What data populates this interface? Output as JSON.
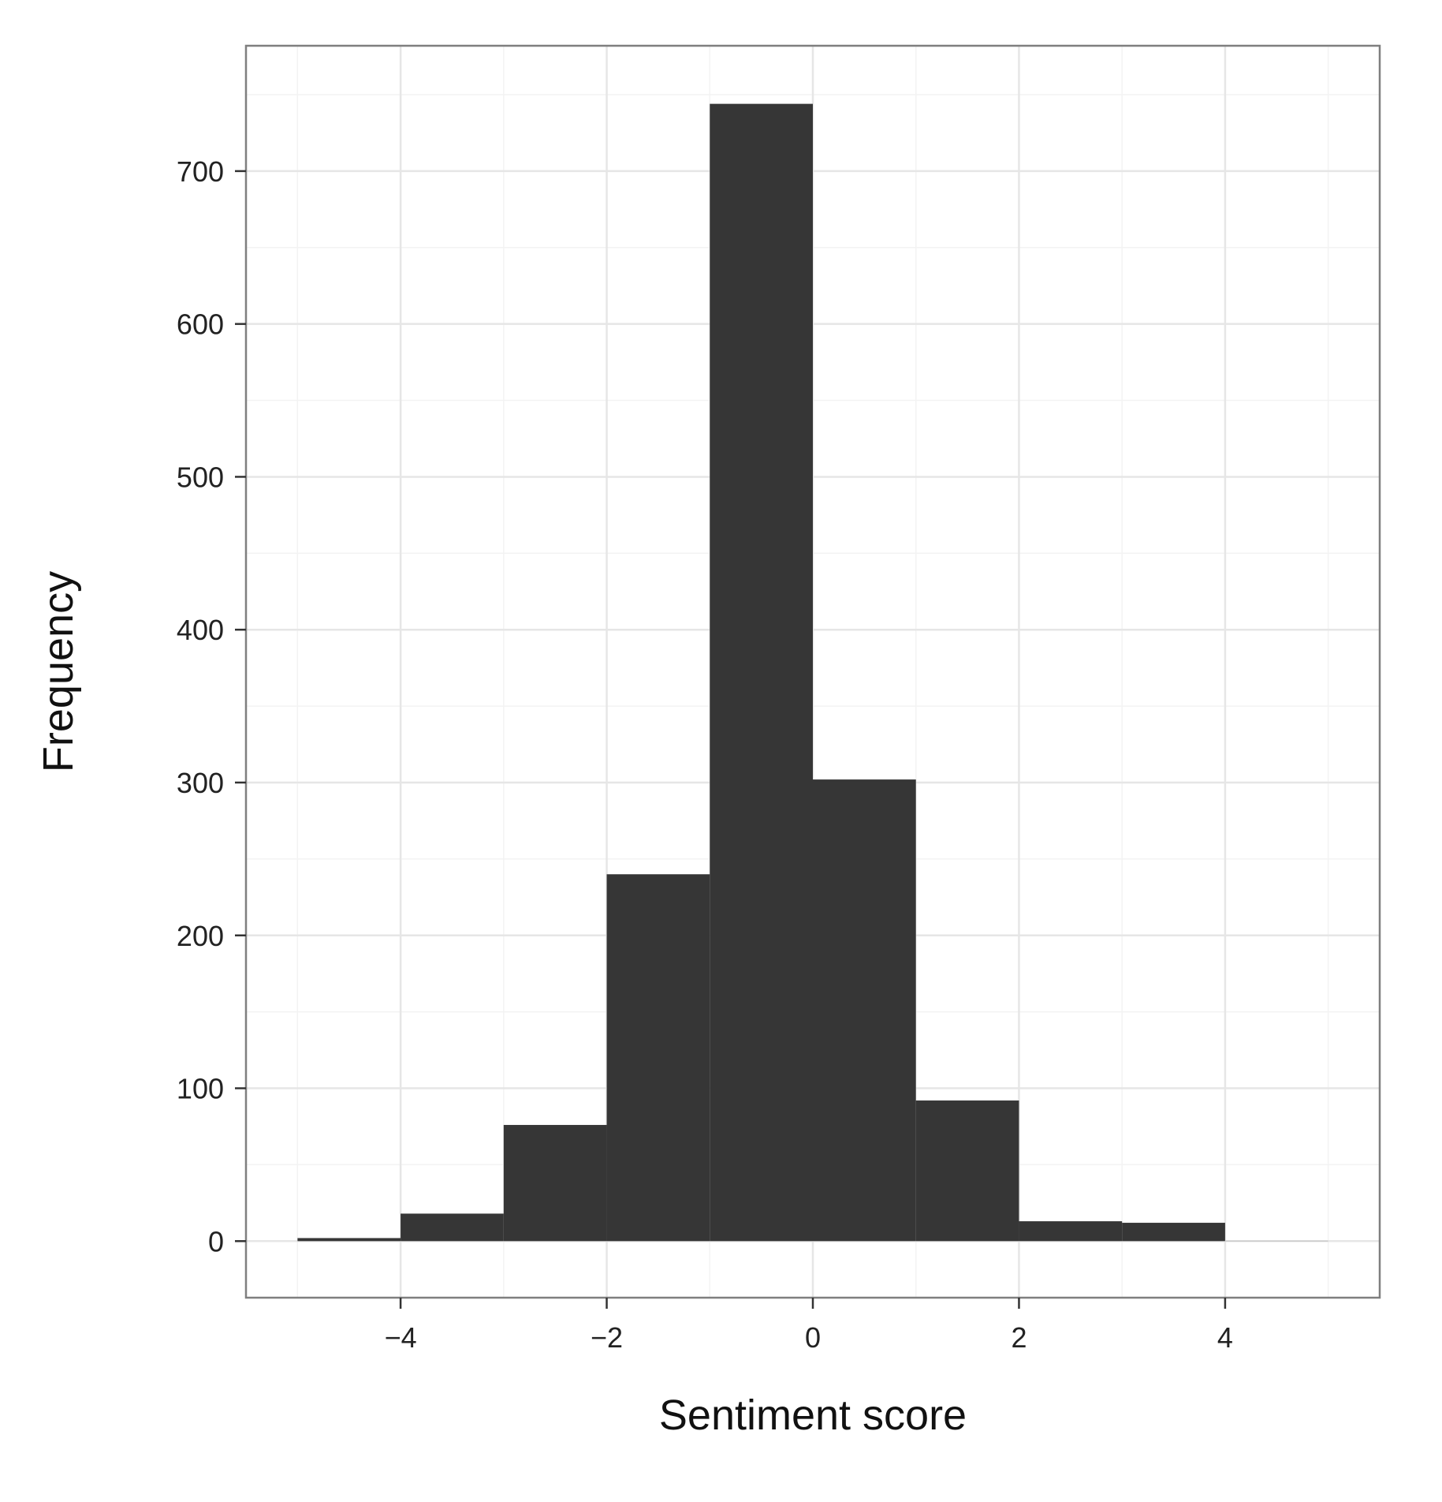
{
  "chart_data": {
    "type": "bar",
    "xlabel": "Sentiment score",
    "ylabel": "Frequency",
    "bins": [
      {
        "x_start": -5,
        "x_end": -4,
        "count": 2
      },
      {
        "x_start": -4,
        "x_end": -3,
        "count": 18
      },
      {
        "x_start": -3,
        "x_end": -2,
        "count": 76
      },
      {
        "x_start": -2,
        "x_end": -1,
        "count": 240
      },
      {
        "x_start": -1,
        "x_end": 0,
        "count": 744
      },
      {
        "x_start": 0,
        "x_end": 1,
        "count": 302
      },
      {
        "x_start": 1,
        "x_end": 2,
        "count": 92
      },
      {
        "x_start": 2,
        "x_end": 3,
        "count": 13
      },
      {
        "x_start": 3,
        "x_end": 4,
        "count": 12
      },
      {
        "x_start": 4,
        "x_end": 5,
        "count": 0
      }
    ],
    "xlim": [
      -5.5,
      5.5
    ],
    "ylim": [
      -37,
      782
    ],
    "x_ticks": [
      -4,
      -2,
      0,
      2,
      4
    ],
    "x_tick_labels": [
      "−4",
      "−2",
      "0",
      "2",
      "4"
    ],
    "y_ticks": [
      0,
      100,
      200,
      300,
      400,
      500,
      600,
      700
    ],
    "y_tick_labels": [
      "0",
      "100",
      "200",
      "300",
      "400",
      "500",
      "600",
      "700"
    ],
    "x_minor_grid": [
      -5,
      -3,
      -1,
      1,
      3,
      5
    ],
    "y_minor_grid": [
      50,
      150,
      250,
      350,
      450,
      550,
      650,
      750
    ],
    "grid": true,
    "colors": {
      "bar_fill": "#363636",
      "panel_border": "#7f7f7f",
      "major_grid": "#e6e6e6",
      "minor_grid": "#f3f3f3",
      "background": "#ffffff"
    }
  }
}
